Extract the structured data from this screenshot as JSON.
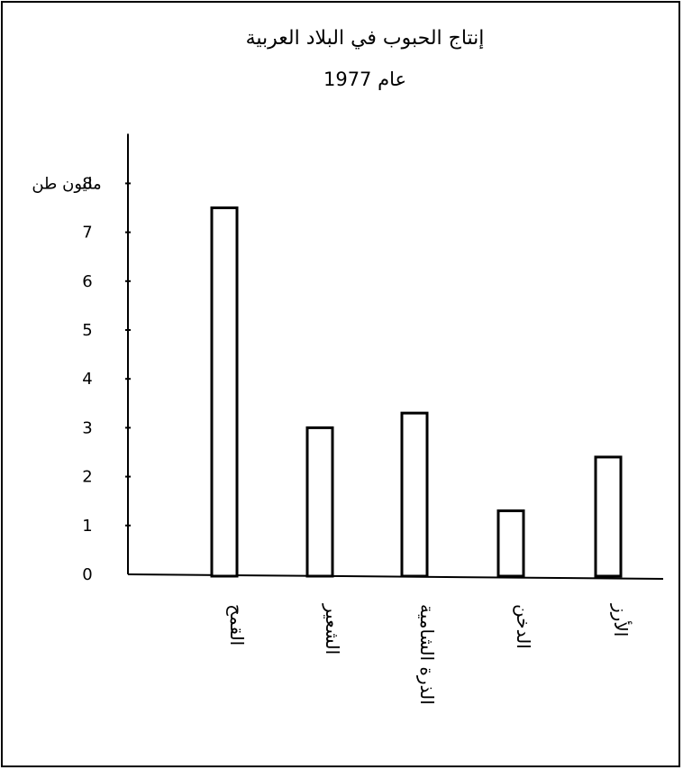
{
  "chart_data": {
    "type": "bar",
    "title": "إنتاج الحبوب في البلاد العربية",
    "subtitle": "عام 1977",
    "unit_label": "مليون طن",
    "categories": [
      "القمح",
      "الشعير",
      "الذرة الشامية",
      "الدخن",
      "الأرز"
    ],
    "values": [
      7.5,
      3.0,
      3.3,
      1.3,
      2.4
    ],
    "yticks": [
      0,
      1,
      2,
      3,
      4,
      5,
      6,
      7,
      8
    ],
    "ylim": [
      0,
      8
    ],
    "grid": false,
    "legend": "none",
    "colors": {
      "bar_fill": "#ffffff",
      "bar_stroke": "#000000",
      "axis": "#000000"
    }
  }
}
